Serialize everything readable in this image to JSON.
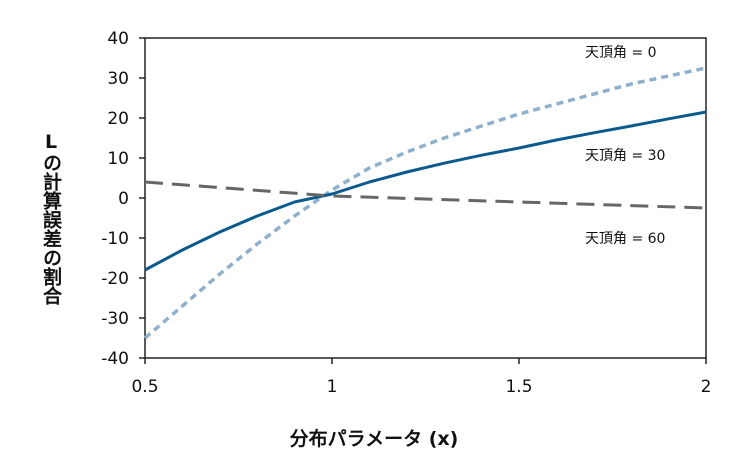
{
  "chart_data": {
    "type": "line",
    "xlabel": "分布パラメータ (x)",
    "ylabel": "Lの計算誤差の割合",
    "xlim": [
      0.5,
      2
    ],
    "ylim": [
      -40,
      40
    ],
    "x_ticks": [
      "0.5",
      "1",
      "1.5",
      "2"
    ],
    "y_ticks": [
      "40",
      "30",
      "20",
      "10",
      "0",
      "-10",
      "-20",
      "-30",
      "-40"
    ],
    "grid": false,
    "series": [
      {
        "name": "天頂角 = 0",
        "style": "dotted",
        "color": "#8fb0cc",
        "x": [
          0.5,
          0.6,
          0.7,
          0.8,
          0.9,
          1.0,
          1.1,
          1.2,
          1.3,
          1.4,
          1.5,
          1.6,
          1.7,
          1.8,
          1.9,
          2.0
        ],
        "y": [
          -35,
          -27,
          -19,
          -11.5,
          -4.5,
          2,
          7.5,
          11.5,
          15,
          18,
          21,
          23.5,
          26,
          28.5,
          30.5,
          32.5
        ]
      },
      {
        "name": "天頂角 = 30",
        "style": "solid",
        "color": "#0b5a8e",
        "x": [
          0.5,
          0.6,
          0.7,
          0.8,
          0.9,
          1.0,
          1.1,
          1.2,
          1.3,
          1.4,
          1.5,
          1.6,
          1.7,
          1.8,
          1.9,
          2.0
        ],
        "y": [
          -18,
          -13,
          -8.5,
          -4.5,
          -1,
          1,
          4,
          6.5,
          8.7,
          10.7,
          12.5,
          14.5,
          16.3,
          18,
          19.8,
          21.5
        ]
      },
      {
        "name": "天頂角 = 60",
        "style": "dashed",
        "color": "#666666",
        "x": [
          0.5,
          1.0,
          1.5,
          2.0
        ],
        "y": [
          4,
          0.5,
          -1,
          -2.5
        ]
      }
    ]
  }
}
